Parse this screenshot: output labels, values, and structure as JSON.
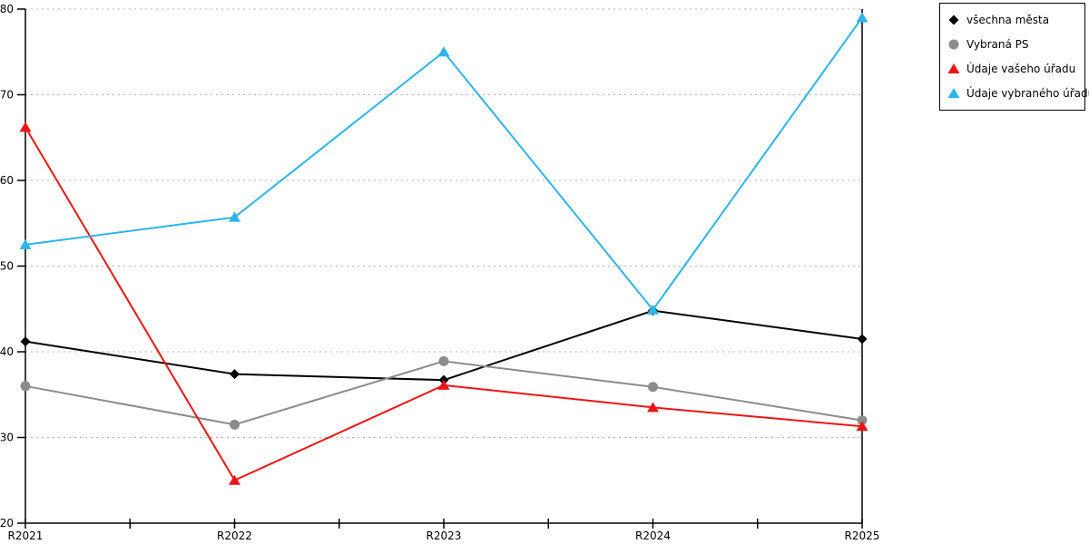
{
  "chart_data": {
    "type": "line",
    "title": "",
    "xlabel": "",
    "ylabel": "",
    "categories": [
      "R2021",
      "R2022",
      "R2023",
      "R2024",
      "R2025"
    ],
    "series": [
      {
        "name": "všechna města",
        "color": "#000000",
        "marker": "diamond",
        "values": [
          41.2,
          37.4,
          36.7,
          44.8,
          41.5
        ]
      },
      {
        "name": "Vybraná PS",
        "color": "#8c8c8c",
        "marker": "circle",
        "values": [
          36.0,
          31.5,
          38.9,
          35.9,
          32.0
        ]
      },
      {
        "name": "Údaje vašeho úřadu",
        "color": "#ee1414",
        "marker": "triangle",
        "values": [
          66.2,
          25.0,
          36.1,
          33.5,
          31.3
        ]
      },
      {
        "name": "Údaje vybraného úřadu",
        "color": "#2db4ea",
        "marker": "triangle",
        "values": [
          52.5,
          55.7,
          75.0,
          44.9,
          79.0
        ]
      }
    ],
    "ylim": [
      20,
      80
    ],
    "y_ticks": [
      20,
      30,
      40,
      50,
      60,
      70,
      80
    ],
    "x_minor_ticks_between_categories": true,
    "grid": "horizontal-dashed",
    "grid_color": "#b3b3b3",
    "axis_color": "#000000",
    "legend_position": "top-right"
  }
}
